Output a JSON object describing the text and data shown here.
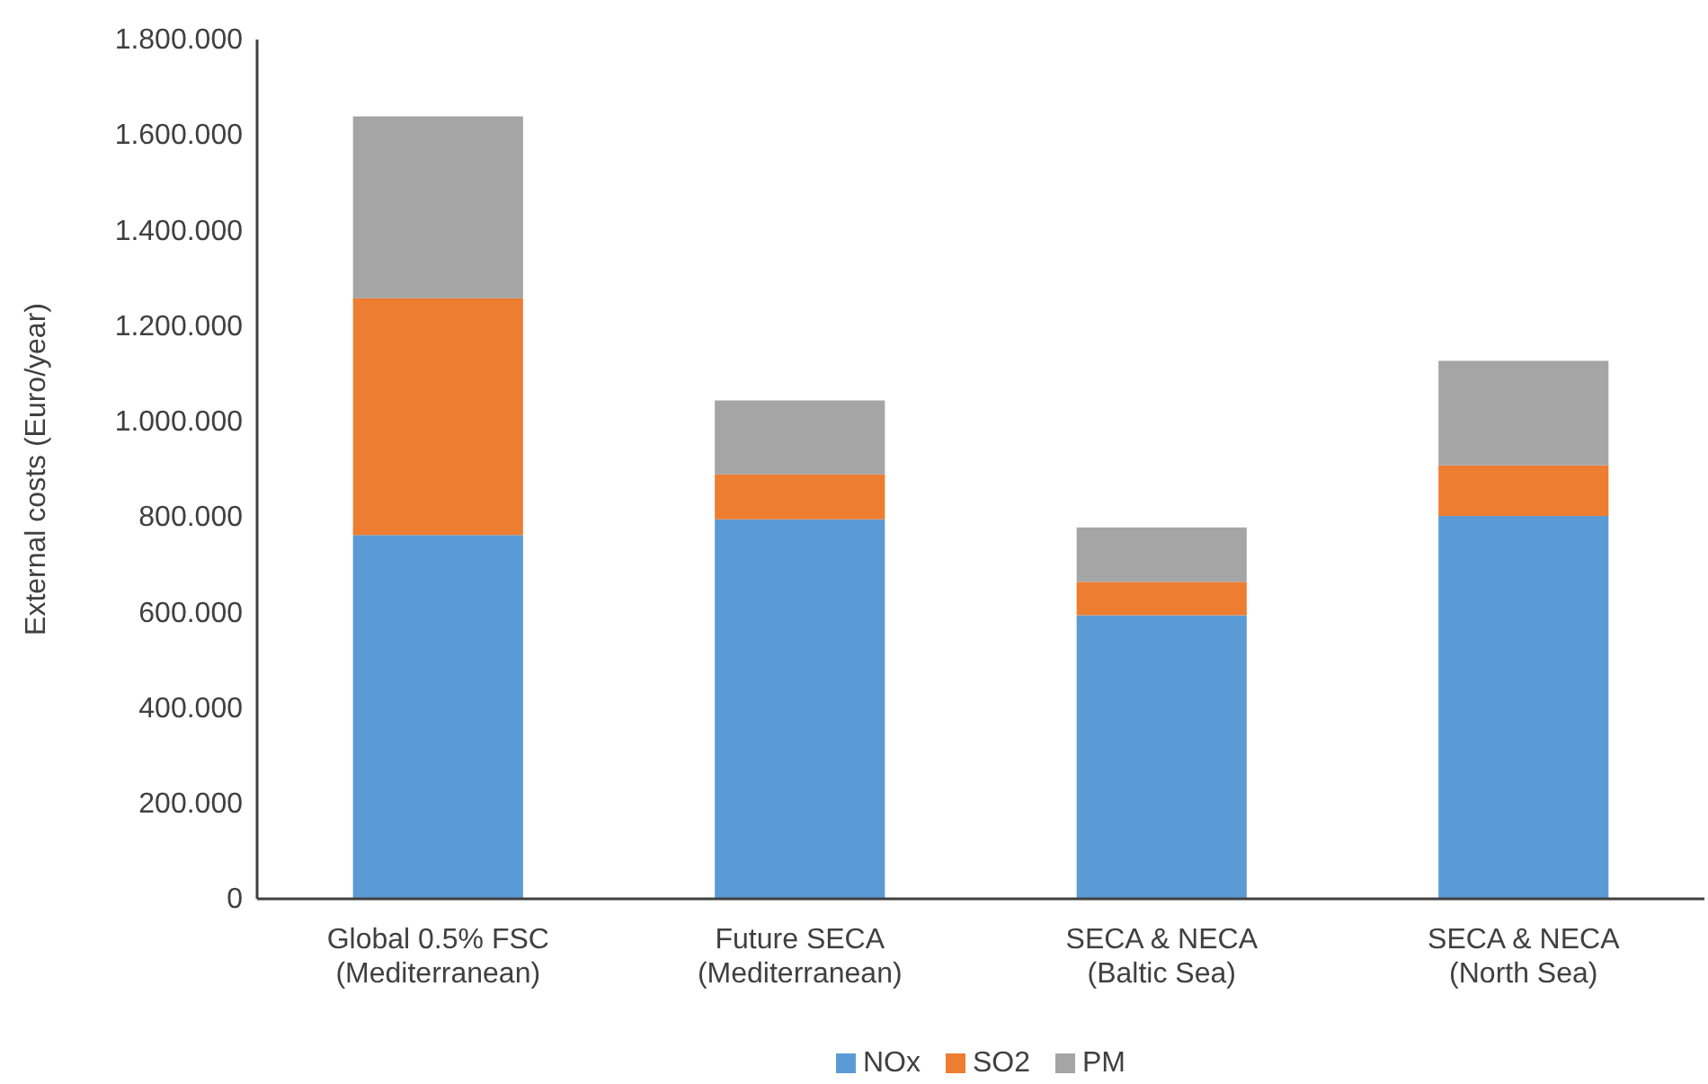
{
  "chart_data": {
    "type": "bar",
    "stacked": true,
    "ylabel": "External costs (Euro/year)",
    "categories": [
      "Global 0.5% FSC (Mediterranean)",
      "Future SECA (Mediterranean)",
      "SECA & NECA (Baltic Sea)",
      "SECA & NECA (North Sea)"
    ],
    "series": [
      {
        "name": "NOx",
        "color": "#5b9bd5",
        "values": [
          762000,
          795000,
          594000,
          802000
        ]
      },
      {
        "name": "SO2",
        "color": "#ed7d31",
        "values": [
          496000,
          94000,
          70000,
          106000
        ]
      },
      {
        "name": "PM",
        "color": "#a5a5a5",
        "values": [
          381000,
          155000,
          114000,
          219000
        ]
      }
    ],
    "ylim": [
      0,
      1800000
    ],
    "yticks": [
      {
        "value": 0,
        "label": "0"
      },
      {
        "value": 200000,
        "label": "200.000"
      },
      {
        "value": 400000,
        "label": "400.000"
      },
      {
        "value": 600000,
        "label": "600.000"
      },
      {
        "value": 800000,
        "label": "800.000"
      },
      {
        "value": 1000000,
        "label": "1.000.000"
      },
      {
        "value": 1200000,
        "label": "1.200.000"
      },
      {
        "value": 1400000,
        "label": "1.400.000"
      },
      {
        "value": 1600000,
        "label": "1.600.000"
      },
      {
        "value": 1800000,
        "label": "1.800.000"
      }
    ],
    "grid": false,
    "legend": "bottom"
  }
}
